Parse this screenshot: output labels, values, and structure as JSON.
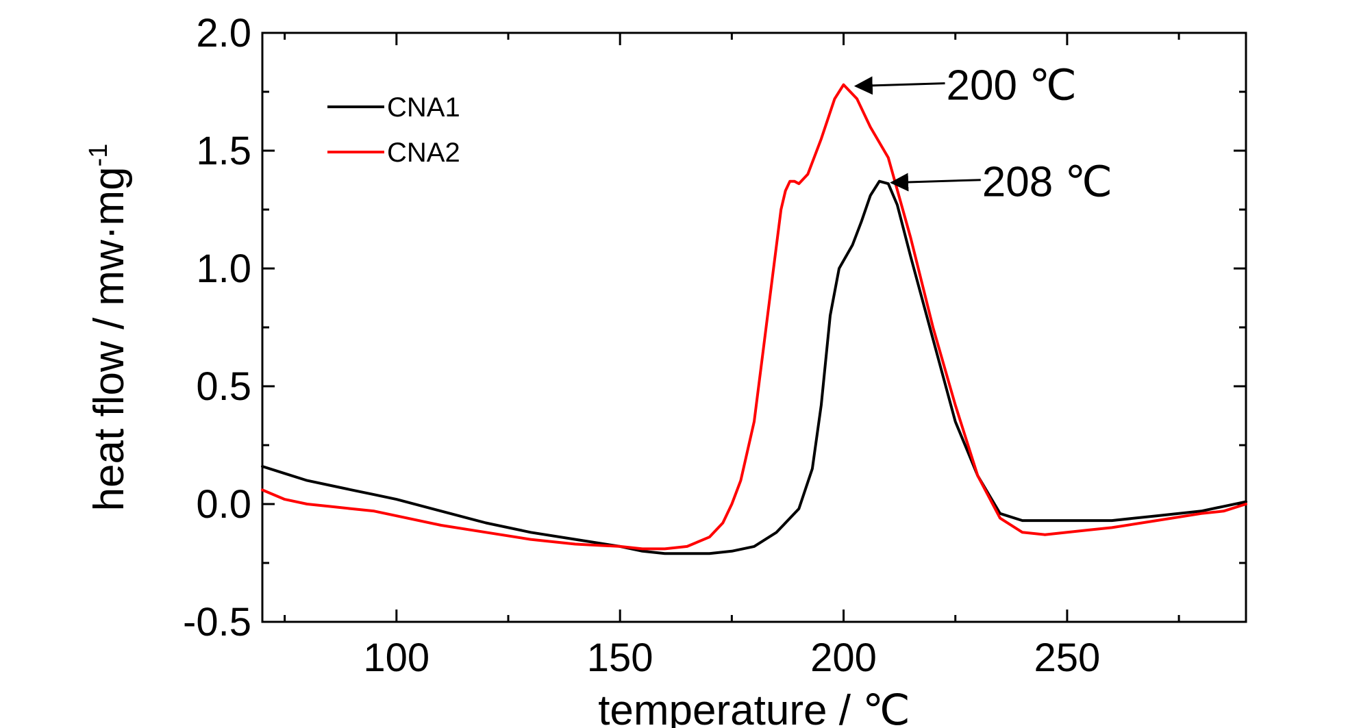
{
  "chart_data": {
    "type": "line",
    "xlabel": "temperature / ℃",
    "ylabel": {
      "base": "heat flow / mw·mg",
      "sup": "-1"
    },
    "xlim": [
      70,
      290
    ],
    "ylim": [
      -0.5,
      2.0
    ],
    "xticks": [
      100,
      150,
      200,
      250
    ],
    "xtick_labels": [
      "100",
      "150",
      "200",
      "250"
    ],
    "yticks": [
      -0.5,
      0.0,
      0.5,
      1.0,
      1.5,
      2.0
    ],
    "ytick_labels": [
      "-0.5",
      "0.0",
      "0.5",
      "1.0",
      "1.5",
      "2.0"
    ],
    "grid": false,
    "legend_position": "top-left",
    "series": [
      {
        "name": "CNA1",
        "color": "#000000",
        "x": [
          70,
          75,
          80,
          85,
          90,
          95,
          100,
          110,
          120,
          130,
          140,
          150,
          155,
          160,
          165,
          170,
          175,
          180,
          185,
          190,
          193,
          195,
          197,
          199,
          202,
          204,
          206,
          208,
          210,
          212,
          215,
          220,
          225,
          230,
          235,
          240,
          245,
          250,
          255,
          260,
          270,
          280,
          285,
          290
        ],
        "y": [
          0.16,
          0.13,
          0.1,
          0.08,
          0.06,
          0.04,
          0.02,
          -0.03,
          -0.08,
          -0.12,
          -0.15,
          -0.18,
          -0.2,
          -0.21,
          -0.21,
          -0.21,
          -0.2,
          -0.18,
          -0.12,
          -0.02,
          0.15,
          0.42,
          0.8,
          1.0,
          1.1,
          1.2,
          1.31,
          1.37,
          1.36,
          1.27,
          1.05,
          0.7,
          0.35,
          0.12,
          -0.04,
          -0.07,
          -0.07,
          -0.07,
          -0.07,
          -0.07,
          -0.05,
          -0.03,
          -0.01,
          0.01
        ]
      },
      {
        "name": "CNA2",
        "color": "#ff0000",
        "x": [
          70,
          75,
          80,
          85,
          90,
          95,
          100,
          110,
          120,
          130,
          140,
          150,
          155,
          160,
          165,
          170,
          173,
          175,
          177,
          180,
          182,
          184,
          186,
          187,
          188,
          189,
          190,
          192,
          195,
          198,
          200,
          203,
          206,
          210,
          215,
          220,
          225,
          230,
          235,
          240,
          245,
          250,
          255,
          260,
          270,
          280,
          285,
          290
        ],
        "y": [
          0.06,
          0.02,
          0.0,
          -0.01,
          -0.02,
          -0.03,
          -0.05,
          -0.09,
          -0.12,
          -0.15,
          -0.17,
          -0.18,
          -0.19,
          -0.19,
          -0.18,
          -0.14,
          -0.08,
          0.0,
          0.1,
          0.35,
          0.65,
          0.95,
          1.25,
          1.33,
          1.37,
          1.37,
          1.36,
          1.4,
          1.55,
          1.72,
          1.78,
          1.72,
          1.6,
          1.47,
          1.13,
          0.75,
          0.42,
          0.12,
          -0.06,
          -0.12,
          -0.13,
          -0.12,
          -0.11,
          -0.1,
          -0.07,
          -0.04,
          -0.03,
          0.0
        ]
      }
    ],
    "annotations": [
      {
        "text": "200 ℃",
        "target_x": 200,
        "target_y": 1.78
      },
      {
        "text": "208 ℃",
        "target_x": 208,
        "target_y": 1.37
      }
    ]
  }
}
